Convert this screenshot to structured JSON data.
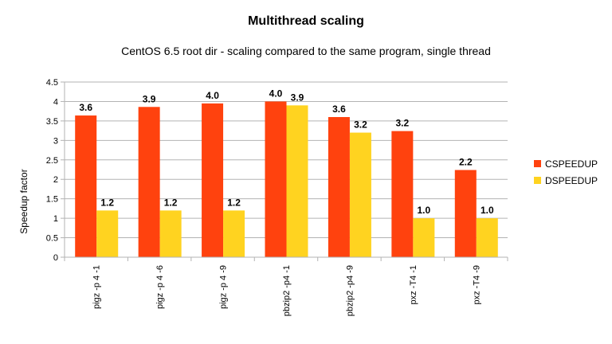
{
  "chart_data": {
    "type": "bar",
    "title": "Multithread scaling",
    "subtitle": "CentOS 6.5 root dir - scaling compared to the same program, single thread",
    "xlabel": "",
    "ylabel": "Speedup factor",
    "ylim": [
      0,
      4.5
    ],
    "yticks": [
      "0",
      "0.5",
      "1",
      "1.5",
      "2",
      "2.5",
      "3",
      "3.5",
      "4",
      "4.5"
    ],
    "grid": true,
    "legend_position": "right",
    "categories": [
      "pigz -p 4 -1",
      "pigz -p 4 -6",
      "pigz -p 4 -9",
      "pbzip2 -p4 -1",
      "pbzip2 -p4 -9",
      "pxz -T4 -1",
      "pxz -T4 -9"
    ],
    "series": [
      {
        "name": "CSPEEDUP",
        "color": "#ff420e",
        "values": [
          3.64,
          3.86,
          3.95,
          4.0,
          3.6,
          3.24,
          2.24
        ],
        "labels": [
          "3.6",
          "3.9",
          "4.0",
          "4.0",
          "3.6",
          "3.2",
          "2.2"
        ]
      },
      {
        "name": "DSPEEDUP",
        "color": "#ffd320",
        "values": [
          1.2,
          1.2,
          1.2,
          3.9,
          3.2,
          1.0,
          1.0
        ],
        "labels": [
          "1.2",
          "1.2",
          "1.2",
          "3.9",
          "3.2",
          "1.0",
          "1.0"
        ]
      }
    ]
  }
}
